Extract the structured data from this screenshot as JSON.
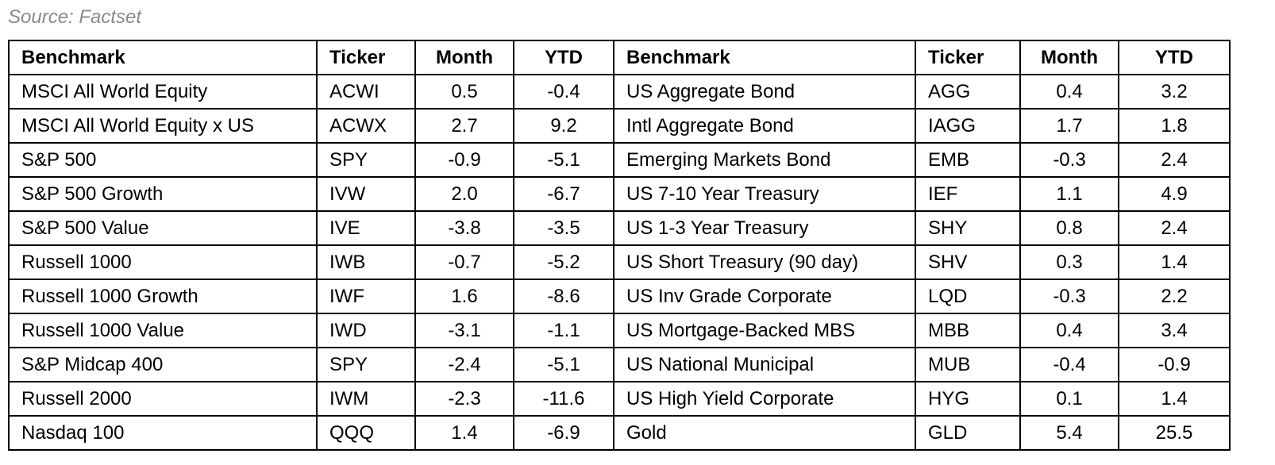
{
  "source": "Source: Factset",
  "headers": [
    "Benchmark",
    "Ticker",
    "Month",
    "YTD",
    "Benchmark",
    "Ticker",
    "Month",
    "YTD"
  ],
  "rows": [
    [
      "MSCI All World Equity",
      "ACWI",
      "0.5",
      "-0.4",
      "US Aggregate Bond",
      "AGG",
      "0.4",
      "3.2"
    ],
    [
      "MSCI All World Equity x US",
      "ACWX",
      "2.7",
      "9.2",
      "Intl Aggregate Bond",
      "IAGG",
      "1.7",
      "1.8"
    ],
    [
      "S&P 500",
      "SPY",
      "-0.9",
      "-5.1",
      "Emerging Markets Bond",
      "EMB",
      "-0.3",
      "2.4"
    ],
    [
      "S&P 500 Growth",
      "IVW",
      "2.0",
      "-6.7",
      "US 7-10 Year Treasury",
      "IEF",
      "1.1",
      "4.9"
    ],
    [
      "S&P 500 Value",
      "IVE",
      "-3.8",
      "-3.5",
      "US 1-3 Year Treasury",
      "SHY",
      "0.8",
      "2.4"
    ],
    [
      "Russell 1000",
      "IWB",
      "-0.7",
      "-5.2",
      "US Short Treasury (90 day)",
      "SHV",
      "0.3",
      "1.4"
    ],
    [
      "Russell 1000 Growth",
      "IWF",
      "1.6",
      "-8.6",
      "US Inv Grade Corporate",
      "LQD",
      "-0.3",
      "2.2"
    ],
    [
      "Russell 1000 Value",
      "IWD",
      "-3.1",
      "-1.1",
      "US Mortgage-Backed MBS",
      "MBB",
      "0.4",
      "3.4"
    ],
    [
      "S&P Midcap 400",
      "SPY",
      "-2.4",
      "-5.1",
      "US National Municipal",
      "MUB",
      "-0.4",
      "-0.9"
    ],
    [
      "Russell 2000",
      "IWM",
      "-2.3",
      "-11.6",
      "US High Yield Corporate",
      "HYG",
      "0.1",
      "1.4"
    ],
    [
      "Nasdaq 100",
      "QQQ",
      "1.4",
      "-6.9",
      "Gold",
      "GLD",
      "5.4",
      "25.5"
    ]
  ]
}
